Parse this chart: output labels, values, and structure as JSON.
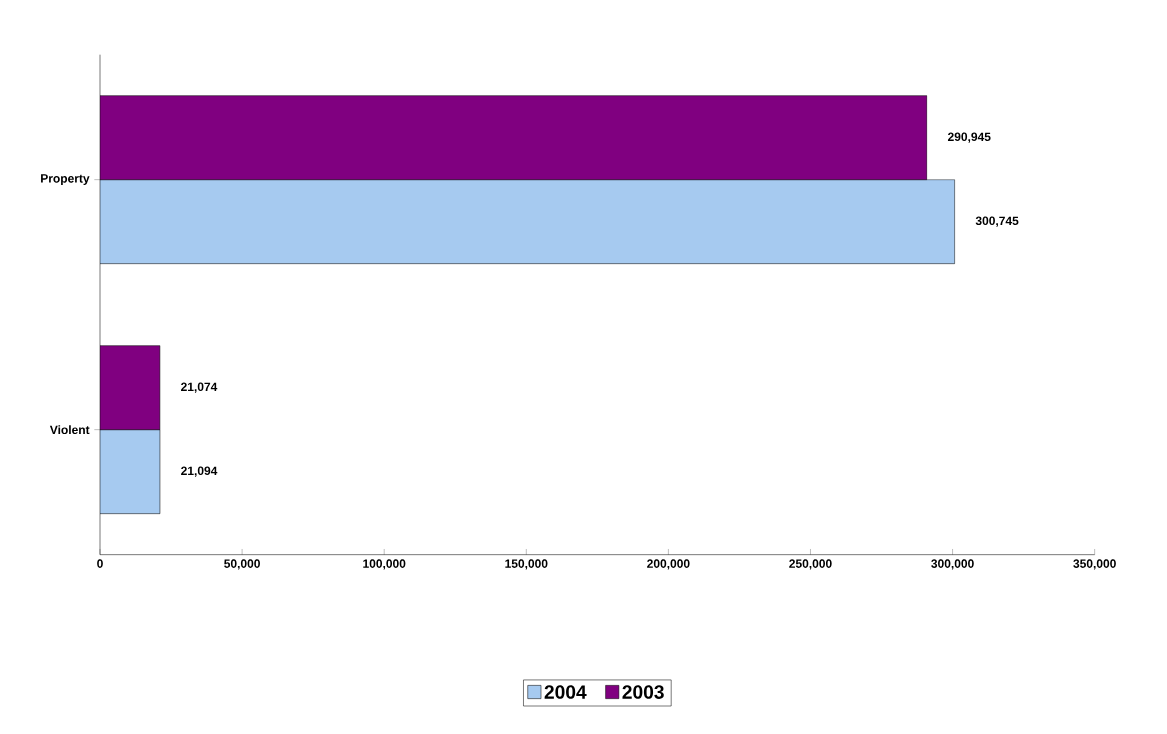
{
  "chart_data": {
    "type": "bar",
    "orientation": "horizontal",
    "categories": [
      "Property",
      "Violent"
    ],
    "series": [
      {
        "name": "2004",
        "color": "#a6caf0",
        "values": [
          300745,
          21094
        ],
        "value_labels": [
          "300,745",
          "21,094"
        ]
      },
      {
        "name": "2003",
        "color": "#800080",
        "values": [
          290945,
          21074
        ],
        "value_labels": [
          "290,945",
          "21,074"
        ]
      }
    ],
    "xlim": [
      0,
      350000
    ],
    "xticks": [
      0,
      {
        "value": 50000,
        "label": "50,000"
      },
      {
        "value": 100000,
        "label": "100,000"
      },
      {
        "value": 150000,
        "label": "150,000"
      },
      {
        "value": 200000,
        "label": "200,000"
      },
      {
        "value": 250000,
        "label": "250,000"
      },
      {
        "value": 300000,
        "label": "300,000"
      },
      {
        "value": 350000,
        "label": "350,000"
      }
    ],
    "grid": false,
    "legend": "bottom"
  }
}
